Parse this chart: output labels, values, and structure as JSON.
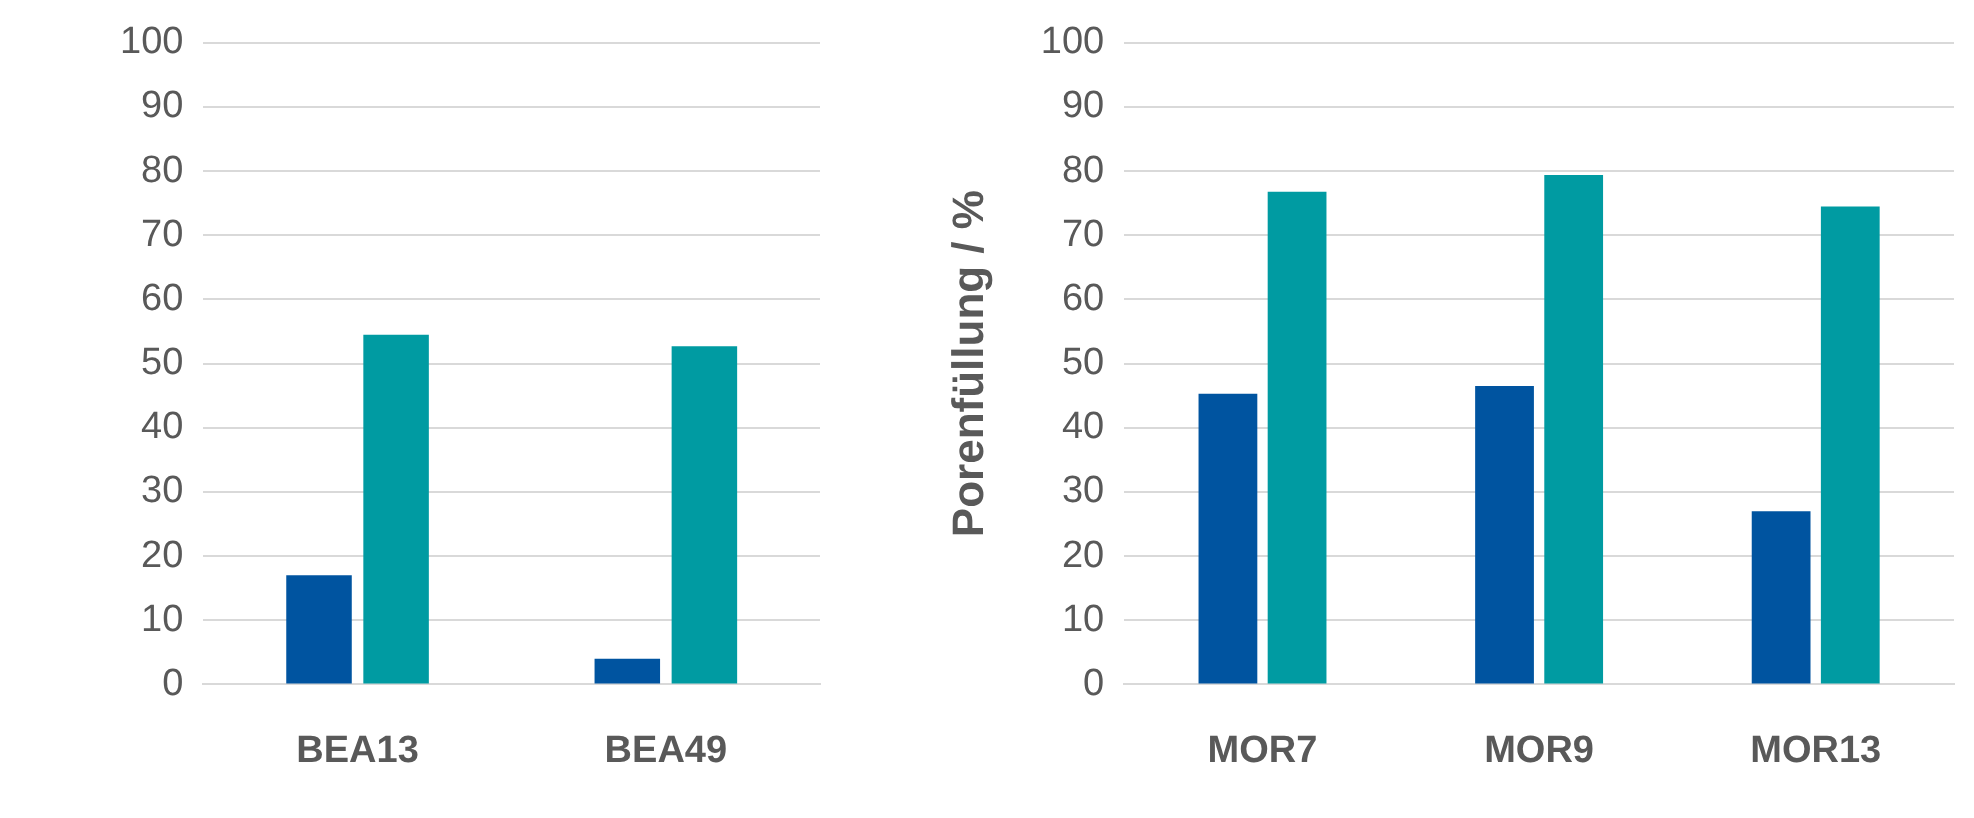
{
  "chart_data": [
    {
      "type": "bar",
      "categories": [
        "BEA13",
        "BEA49"
      ],
      "series": [
        {
          "color": "#0054a0",
          "values": [
            17,
            4
          ]
        },
        {
          "color": "#009ba2",
          "values": [
            54.5,
            52.7
          ]
        }
      ],
      "ylim": [
        0,
        100
      ],
      "yticks": [
        0,
        10,
        20,
        30,
        40,
        50,
        60,
        70,
        80,
        90,
        100
      ],
      "grid": "y"
    },
    {
      "type": "bar",
      "ylabel": "Porenfüllung / %",
      "categories": [
        "MOR7",
        "MOR9",
        "MOR13"
      ],
      "series": [
        {
          "color": "#0054a0",
          "values": [
            45.3,
            46.5,
            27
          ]
        },
        {
          "color": "#009ba2",
          "values": [
            76.8,
            79.4,
            74.5
          ]
        }
      ],
      "ylim": [
        0,
        100
      ],
      "yticks": [
        0,
        10,
        20,
        30,
        40,
        50,
        60,
        70,
        80,
        90,
        100
      ],
      "grid": "y"
    }
  ]
}
